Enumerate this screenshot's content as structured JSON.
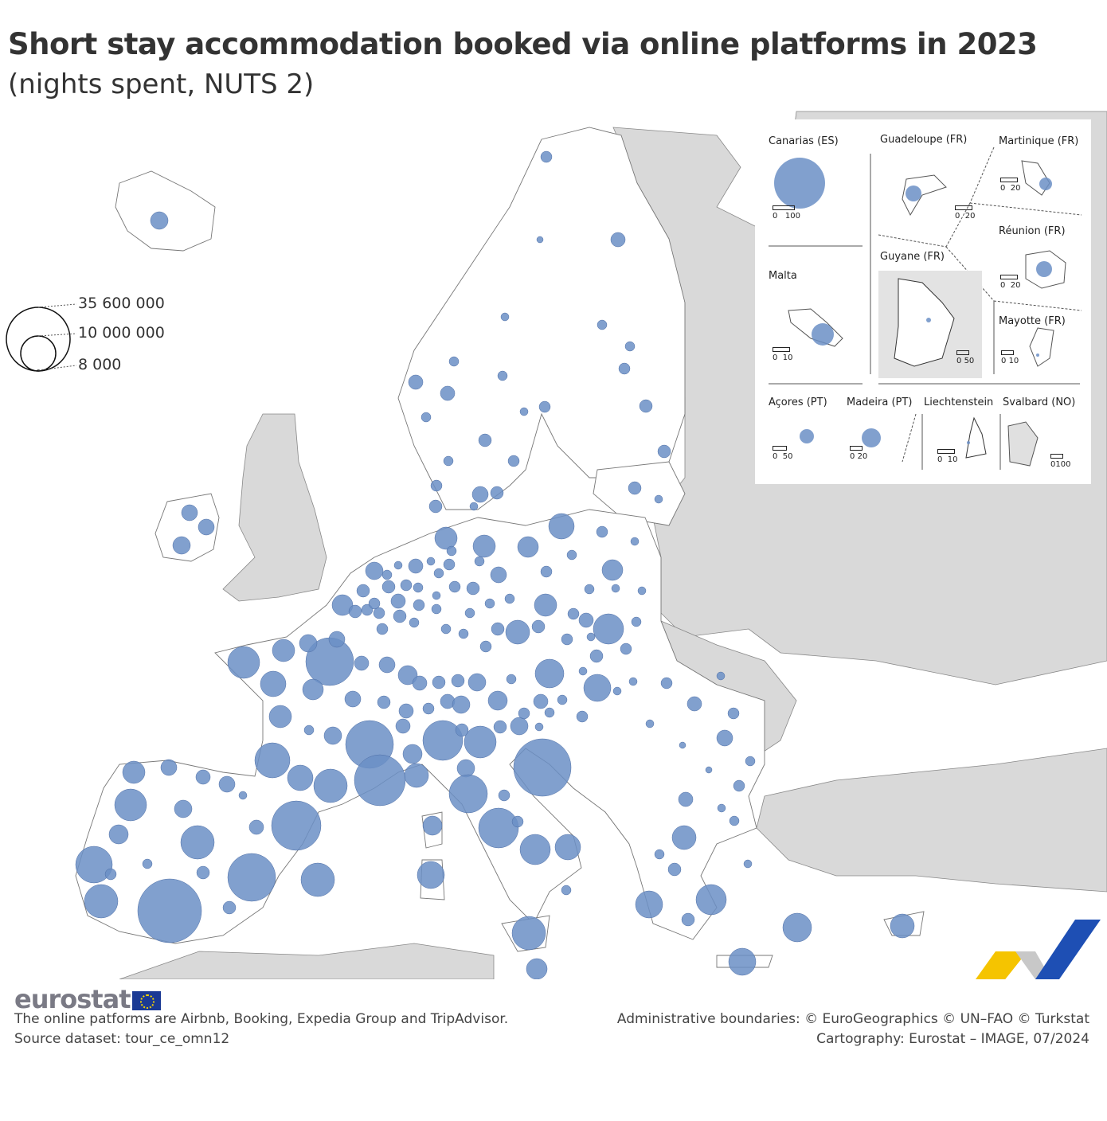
{
  "title": "Short stay accommodation booked via online platforms in 2023",
  "subtitle": "(nights spent, NUTS 2)",
  "legend": {
    "sizes": [
      "35 600 000",
      "10 000 000",
      "8 000"
    ],
    "bubble_color": "#6b8fc6"
  },
  "colors": {
    "land_eu": "#ffffff",
    "land_other": "#d9d9d9",
    "bubble": "#6b8fc6",
    "border": "#555555"
  },
  "insets": [
    {
      "name": "Canarias (ES)",
      "scale": [
        "0",
        "100"
      ]
    },
    {
      "name": "Guadeloupe (FR)",
      "scale": [
        "0",
        "20"
      ]
    },
    {
      "name": "Martinique (FR)",
      "scale": [
        "0",
        "20"
      ]
    },
    {
      "name": "Réunion (FR)",
      "scale": [
        "0",
        "20"
      ]
    },
    {
      "name": "Malta",
      "scale": [
        "0",
        "10"
      ]
    },
    {
      "name": "Guyane (FR)",
      "scale": [
        "0",
        "50"
      ]
    },
    {
      "name": "Mayotte (FR)",
      "scale": [
        "0",
        "10"
      ]
    },
    {
      "name": "Açores (PT)",
      "scale": [
        "0",
        "50"
      ]
    },
    {
      "name": "Madeira (PT)",
      "scale": [
        "0",
        "20"
      ]
    },
    {
      "name": "Liechtenstein",
      "scale": [
        "0",
        "10"
      ]
    },
    {
      "name": "Svalbard (NO)",
      "scale": [
        "0",
        "100"
      ]
    }
  ],
  "footer": {
    "logo": "eurostat",
    "note": "The online patforms are Airbnb, Booking, Expedia Group and TripAdvisor.",
    "source": "Source dataset: tour_ce_omn12",
    "boundaries": "Administrative boundaries: © EuroGeographics © UN–FAO © Turkstat",
    "cartography": "Cartography: Eurostat – IMAGE, 07/2024"
  }
}
